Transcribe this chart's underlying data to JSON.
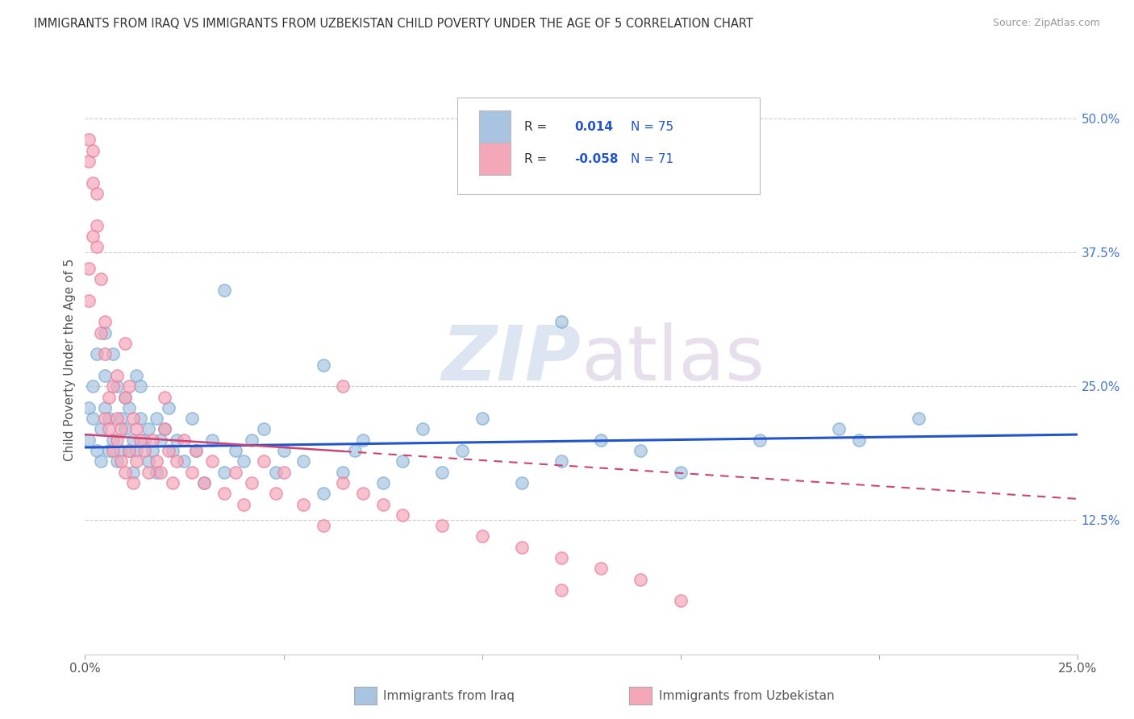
{
  "title": "IMMIGRANTS FROM IRAQ VS IMMIGRANTS FROM UZBEKISTAN CHILD POVERTY UNDER THE AGE OF 5 CORRELATION CHART",
  "source": "Source: ZipAtlas.com",
  "ylabel": "Child Poverty Under the Age of 5",
  "xlim": [
    0.0,
    0.25
  ],
  "ylim": [
    0.0,
    0.55
  ],
  "iraq_color": "#a8c4e0",
  "iraq_edge_color": "#7bafd4",
  "uzbekistan_color": "#f4a7b9",
  "uzbekistan_edge_color": "#e87fa0",
  "iraq_line_color": "#2255cc",
  "uzbekistan_line_color": "#cc4477",
  "iraq_R": 0.014,
  "iraq_N": 75,
  "uzbekistan_R": -0.058,
  "uzbekistan_N": 71,
  "legend_label_iraq": "Immigrants from Iraq",
  "legend_label_uzbekistan": "Immigrants from Uzbekistan",
  "iraq_trend_x0": 0.0,
  "iraq_trend_y0": 0.193,
  "iraq_trend_x1": 0.25,
  "iraq_trend_y1": 0.205,
  "uzbek_trend_x0": 0.0,
  "uzbek_trend_y0": 0.205,
  "uzbek_trend_x1": 0.25,
  "uzbek_trend_y1": 0.145,
  "iraq_scatter_x": [
    0.001,
    0.001,
    0.002,
    0.002,
    0.003,
    0.003,
    0.004,
    0.004,
    0.005,
    0.005,
    0.005,
    0.006,
    0.006,
    0.007,
    0.007,
    0.008,
    0.008,
    0.009,
    0.009,
    0.01,
    0.01,
    0.011,
    0.011,
    0.012,
    0.012,
    0.013,
    0.013,
    0.014,
    0.014,
    0.015,
    0.016,
    0.016,
    0.017,
    0.018,
    0.018,
    0.019,
    0.02,
    0.021,
    0.022,
    0.023,
    0.025,
    0.027,
    0.028,
    0.03,
    0.032,
    0.035,
    0.038,
    0.04,
    0.042,
    0.045,
    0.048,
    0.05,
    0.055,
    0.06,
    0.065,
    0.068,
    0.07,
    0.075,
    0.08,
    0.085,
    0.09,
    0.095,
    0.1,
    0.11,
    0.12,
    0.13,
    0.14,
    0.15,
    0.17,
    0.19,
    0.12,
    0.06,
    0.035,
    0.21,
    0.195
  ],
  "iraq_scatter_y": [
    0.2,
    0.23,
    0.25,
    0.22,
    0.19,
    0.28,
    0.21,
    0.18,
    0.3,
    0.23,
    0.26,
    0.19,
    0.22,
    0.28,
    0.2,
    0.25,
    0.18,
    0.22,
    0.19,
    0.24,
    0.21,
    0.19,
    0.23,
    0.2,
    0.17,
    0.26,
    0.19,
    0.22,
    0.25,
    0.2,
    0.21,
    0.18,
    0.19,
    0.22,
    0.17,
    0.2,
    0.21,
    0.23,
    0.19,
    0.2,
    0.18,
    0.22,
    0.19,
    0.16,
    0.2,
    0.17,
    0.19,
    0.18,
    0.2,
    0.21,
    0.17,
    0.19,
    0.18,
    0.15,
    0.17,
    0.19,
    0.2,
    0.16,
    0.18,
    0.21,
    0.17,
    0.19,
    0.22,
    0.16,
    0.18,
    0.2,
    0.19,
    0.17,
    0.2,
    0.21,
    0.31,
    0.27,
    0.34,
    0.22,
    0.2
  ],
  "uzbekistan_scatter_x": [
    0.001,
    0.001,
    0.002,
    0.002,
    0.003,
    0.003,
    0.004,
    0.004,
    0.005,
    0.005,
    0.006,
    0.006,
    0.007,
    0.007,
    0.008,
    0.008,
    0.009,
    0.009,
    0.01,
    0.01,
    0.011,
    0.011,
    0.012,
    0.012,
    0.013,
    0.013,
    0.014,
    0.015,
    0.016,
    0.017,
    0.018,
    0.019,
    0.02,
    0.021,
    0.022,
    0.023,
    0.025,
    0.027,
    0.028,
    0.03,
    0.032,
    0.035,
    0.038,
    0.04,
    0.042,
    0.045,
    0.048,
    0.05,
    0.055,
    0.06,
    0.065,
    0.07,
    0.075,
    0.08,
    0.09,
    0.1,
    0.11,
    0.12,
    0.13,
    0.14,
    0.065,
    0.02,
    0.01,
    0.008,
    0.005,
    0.003,
    0.002,
    0.001,
    0.001,
    0.12,
    0.15
  ],
  "uzbekistan_scatter_y": [
    0.48,
    0.46,
    0.44,
    0.47,
    0.4,
    0.38,
    0.35,
    0.3,
    0.22,
    0.28,
    0.24,
    0.21,
    0.25,
    0.19,
    0.22,
    0.2,
    0.18,
    0.21,
    0.24,
    0.17,
    0.25,
    0.19,
    0.22,
    0.16,
    0.21,
    0.18,
    0.2,
    0.19,
    0.17,
    0.2,
    0.18,
    0.17,
    0.21,
    0.19,
    0.16,
    0.18,
    0.2,
    0.17,
    0.19,
    0.16,
    0.18,
    0.15,
    0.17,
    0.14,
    0.16,
    0.18,
    0.15,
    0.17,
    0.14,
    0.12,
    0.16,
    0.15,
    0.14,
    0.13,
    0.12,
    0.11,
    0.1,
    0.09,
    0.08,
    0.07,
    0.25,
    0.24,
    0.29,
    0.26,
    0.31,
    0.43,
    0.39,
    0.36,
    0.33,
    0.06,
    0.05
  ]
}
